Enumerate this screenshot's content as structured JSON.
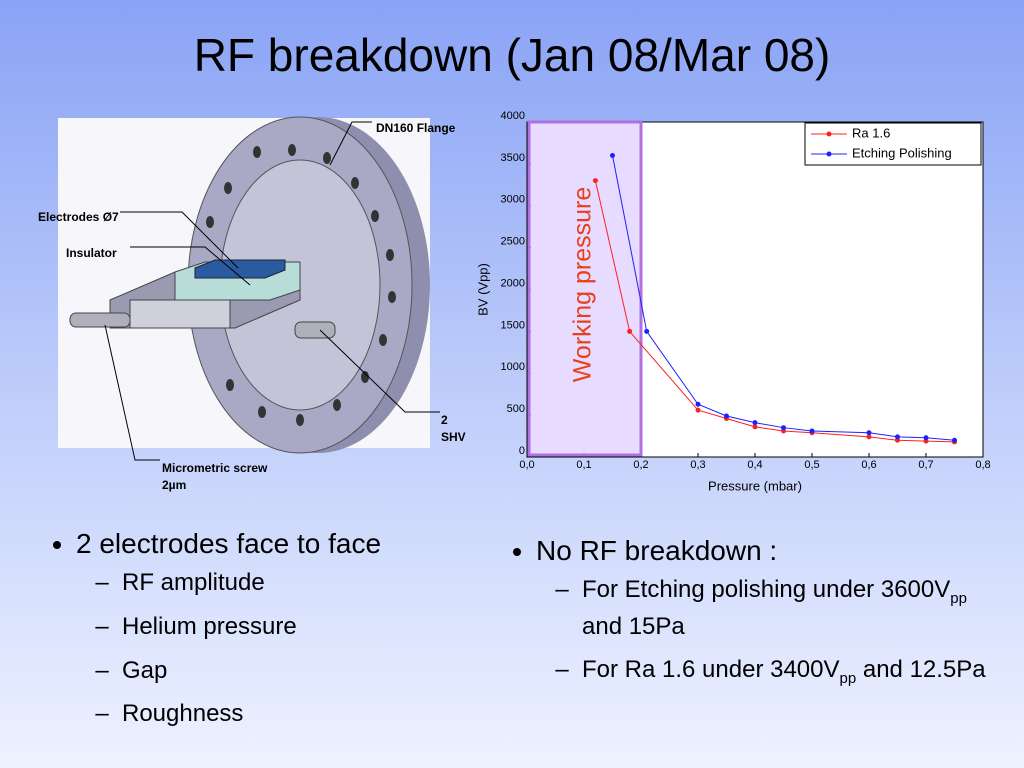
{
  "title": "RF breakdown (Jan 08/Mar 08)",
  "diagram": {
    "labels": {
      "flange": "DN160 Flange",
      "electrodes": "Electrodes Ø7",
      "insulator": "Insulator",
      "shv": "2 SHV",
      "screw": "Micrometric screw 2µm"
    }
  },
  "chart_data": {
    "type": "line",
    "xlabel": "Pressure (mbar)",
    "ylabel": "BV (Vpp)",
    "xlim": [
      0,
      0.8
    ],
    "ylim": [
      0,
      4000
    ],
    "xticks": [
      {
        "value": 0,
        "label": "0,0"
      },
      {
        "value": 0.1,
        "label": "0,1"
      },
      {
        "value": 0.2,
        "label": "0,2"
      },
      {
        "value": 0.3,
        "label": "0,3"
      },
      {
        "value": 0.4,
        "label": "0,4"
      },
      {
        "value": 0.5,
        "label": "0,5"
      },
      {
        "value": 0.6,
        "label": "0,6"
      },
      {
        "value": 0.7,
        "label": "0,7"
      },
      {
        "value": 0.8,
        "label": "0,8"
      }
    ],
    "yticks": [
      0,
      500,
      1000,
      1500,
      2000,
      2500,
      3000,
      3500,
      4000
    ],
    "legend": "upper right",
    "highlight": {
      "label": "Working pressure",
      "x": [
        0,
        0.2
      ],
      "color": "#e8401c"
    },
    "series": [
      {
        "name": "Ra 1.6",
        "color": "#ff2020",
        "x": [
          0.12,
          0.18,
          0.3,
          0.35,
          0.4,
          0.45,
          0.5,
          0.6,
          0.65,
          0.7,
          0.75
        ],
        "values": [
          3300,
          1500,
          560,
          460,
          360,
          310,
          290,
          240,
          200,
          190,
          180
        ]
      },
      {
        "name": "Etching Polishing",
        "color": "#2020ff",
        "x": [
          0.15,
          0.21,
          0.3,
          0.35,
          0.4,
          0.45,
          0.5,
          0.6,
          0.65,
          0.7,
          0.75
        ],
        "values": [
          3600,
          1500,
          630,
          490,
          410,
          350,
          310,
          290,
          240,
          230,
          200
        ]
      }
    ]
  },
  "bullets_left": {
    "main": "2 electrodes face to face",
    "subs": [
      "RF amplitude",
      "Helium pressure",
      "Gap",
      "Roughness"
    ]
  },
  "bullets_right": {
    "main": "No RF breakdown :",
    "subs": [
      [
        "For Etching polishing under 3600V",
        "pp",
        " and 15Pa"
      ],
      [
        "For Ra 1.6 under 3400V",
        "pp",
        " and 12.5Pa"
      ]
    ]
  }
}
